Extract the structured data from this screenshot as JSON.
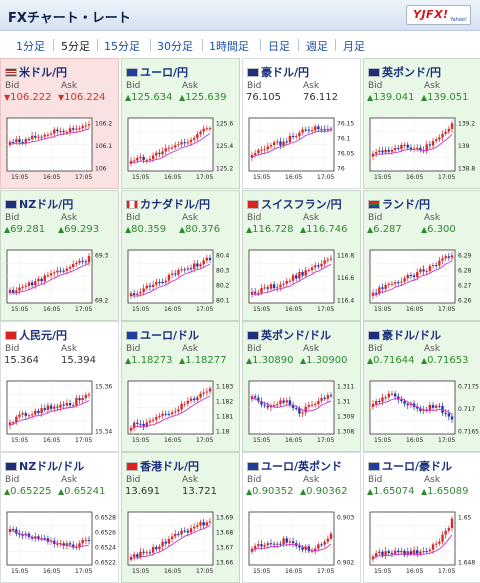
{
  "header": {
    "title": "FXチャート・レート",
    "logo": "YJFX!",
    "logo_sub": "Yahoo!"
  },
  "colors": {
    "up": "#2f8a2f",
    "down": "#d02f2f",
    "candle_up": "#d52a2a",
    "candle_down": "#2536a8",
    "ma": "#cc33cc"
  },
  "tabs": [
    {
      "label": "1分足"
    },
    {
      "label": "5分足",
      "active": true
    },
    {
      "label": "15分足"
    },
    {
      "label": "30分足"
    },
    {
      "label": "1時間足"
    },
    {
      "label": "日足"
    },
    {
      "label": "週足"
    },
    {
      "label": "月足"
    }
  ],
  "x_labels": [
    "15:05",
    "16:05",
    "17:05"
  ],
  "bid_label": "Bid",
  "ask_label": "Ask",
  "tiles": [
    {
      "pair": "米ドル/円",
      "flag": "us",
      "bid": "106.222",
      "ask": "106.224",
      "dir": "down",
      "bid_arrow": true,
      "ask_arrow": true,
      "y_ticks": [
        "106.2",
        "106.1",
        "106"
      ],
      "trend": [
        0.55,
        0.6,
        0.7,
        0.8,
        0.85,
        0.9
      ],
      "style": "hl"
    },
    {
      "pair": "ユーロ/円",
      "flag": "eu",
      "bid": "125.634",
      "ask": "125.639",
      "dir": "up",
      "bid_arrow": true,
      "ask_arrow": true,
      "y_ticks": [
        "125.6",
        "125.4",
        "125.2"
      ],
      "trend": [
        0.15,
        0.2,
        0.35,
        0.5,
        0.65,
        0.9
      ],
      "style": "g"
    },
    {
      "pair": "豪ドル/円",
      "flag": "au",
      "bid": "76.105",
      "ask": "76.112",
      "dir": "neutral",
      "bid_arrow": false,
      "ask_arrow": false,
      "y_ticks": [
        "76.15",
        "76.1",
        "76.05",
        "76"
      ],
      "trend": [
        0.3,
        0.45,
        0.55,
        0.75,
        0.9,
        0.85
      ],
      "style": "wt"
    },
    {
      "pair": "英ポンド/円",
      "flag": "uk",
      "bid": "139.041",
      "ask": "139.051",
      "dir": "up",
      "bid_arrow": true,
      "ask_arrow": true,
      "y_ticks": [
        "139.2",
        "139",
        "138.8"
      ],
      "trend": [
        0.35,
        0.4,
        0.45,
        0.35,
        0.6,
        0.95
      ],
      "style": "g"
    },
    {
      "pair": "NZドル/円",
      "flag": "nz",
      "bid": "69.281",
      "ask": "69.293",
      "dir": "up",
      "bid_arrow": true,
      "ask_arrow": true,
      "y_ticks": [
        "69.3",
        "69.2"
      ],
      "trend": [
        0.15,
        0.3,
        0.45,
        0.6,
        0.75,
        0.9
      ],
      "style": "g"
    },
    {
      "pair": "カナダドル/円",
      "flag": "ca",
      "bid": "80.359",
      "ask": "80.376",
      "dir": "up",
      "bid_arrow": true,
      "ask_arrow": true,
      "y_ticks": [
        "80.4",
        "80.3",
        "80.2",
        "80.1"
      ],
      "trend": [
        0.1,
        0.25,
        0.4,
        0.6,
        0.75,
        0.9
      ],
      "style": "g"
    },
    {
      "pair": "スイスフラン/円",
      "flag": "ch",
      "bid": "116.728",
      "ask": "116.746",
      "dir": "up",
      "bid_arrow": true,
      "ask_arrow": true,
      "y_ticks": [
        "116.8",
        "116.6",
        "116.4"
      ],
      "trend": [
        0.15,
        0.25,
        0.35,
        0.55,
        0.7,
        0.9
      ],
      "style": "g"
    },
    {
      "pair": "ランド/円",
      "flag": "za",
      "bid": "6.287",
      "ask": "6.300",
      "dir": "up",
      "bid_arrow": true,
      "ask_arrow": true,
      "y_ticks": [
        "6.29",
        "6.28",
        "6.27",
        "6.26"
      ],
      "trend": [
        0.15,
        0.3,
        0.45,
        0.6,
        0.8,
        0.95
      ],
      "style": "g"
    },
    {
      "pair": "人民元/円",
      "flag": "cn",
      "bid": "15.364",
      "ask": "15.394",
      "dir": "neutral",
      "bid_arrow": false,
      "ask_arrow": false,
      "y_ticks": [
        "15.36",
        "15.34"
      ],
      "trend": [
        0.2,
        0.35,
        0.45,
        0.55,
        0.6,
        0.85
      ],
      "style": "wt"
    },
    {
      "pair": "ユーロ/ドル",
      "flag": "eu",
      "bid": "1.18273",
      "ask": "1.18277",
      "dir": "up",
      "bid_arrow": true,
      "ask_arrow": true,
      "y_ticks": [
        "1.183",
        "1.182",
        "1.181",
        "1.18"
      ],
      "trend": [
        0.1,
        0.15,
        0.3,
        0.5,
        0.7,
        0.95
      ],
      "style": "g"
    },
    {
      "pair": "英ポンド/ドル",
      "flag": "uk",
      "bid": "1.30890",
      "ask": "1.30900",
      "dir": "up",
      "bid_arrow": true,
      "ask_arrow": true,
      "y_ticks": [
        "1.311",
        "1.31",
        "1.309",
        "1.308"
      ],
      "trend": [
        0.7,
        0.55,
        0.65,
        0.4,
        0.6,
        0.75
      ],
      "style": "g"
    },
    {
      "pair": "豪ドル/ドル",
      "flag": "au",
      "bid": "0.71644",
      "ask": "0.71653",
      "dir": "up",
      "bid_arrow": true,
      "ask_arrow": true,
      "y_ticks": [
        "0.7175",
        "0.717",
        "0.7165"
      ],
      "trend": [
        0.55,
        0.8,
        0.6,
        0.45,
        0.55,
        0.2
      ],
      "style": "g"
    },
    {
      "pair": "NZドル/ドル",
      "flag": "nz",
      "bid": "0.65225",
      "ask": "0.65241",
      "dir": "up",
      "bid_arrow": true,
      "ask_arrow": true,
      "y_ticks": [
        "0.6528",
        "0.6526",
        "0.6524",
        "0.6522"
      ],
      "trend": [
        0.7,
        0.55,
        0.5,
        0.4,
        0.3,
        0.5
      ],
      "style": "wt"
    },
    {
      "pair": "香港ドル/円",
      "flag": "hk",
      "bid": "13.691",
      "ask": "13.721",
      "dir": "neutral",
      "bid_arrow": false,
      "ask_arrow": false,
      "y_ticks": [
        "13.69",
        "13.68",
        "13.67",
        "13.66"
      ],
      "trend": [
        0.1,
        0.2,
        0.4,
        0.6,
        0.75,
        0.9
      ],
      "style": "g"
    },
    {
      "pair": "ユーロ/英ポンド",
      "flag": "eu",
      "bid": "0.90352",
      "ask": "0.90362",
      "dir": "up",
      "bid_arrow": true,
      "ask_arrow": true,
      "y_ticks": [
        "0.903",
        "0.902"
      ],
      "trend": [
        0.3,
        0.35,
        0.45,
        0.3,
        0.25,
        0.6
      ],
      "style": "wt"
    },
    {
      "pair": "ユーロ/豪ドル",
      "flag": "eu",
      "bid": "1.65074",
      "ask": "1.65089",
      "dir": "up",
      "bid_arrow": true,
      "ask_arrow": true,
      "y_ticks": [
        "1.65",
        "1.648"
      ],
      "trend": [
        0.15,
        0.2,
        0.18,
        0.2,
        0.35,
        0.9
      ],
      "style": "wt"
    }
  ]
}
